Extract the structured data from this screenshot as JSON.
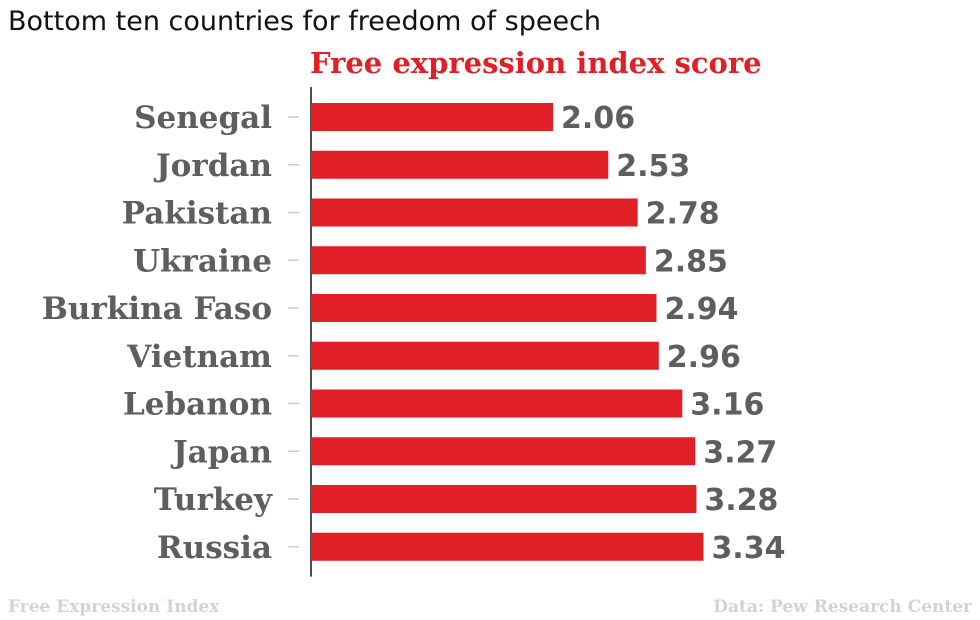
{
  "title": "Bottom ten countries for freedom of speech",
  "footer": {
    "left": "Free Expression Index",
    "right": "Data: Pew Research Center"
  },
  "colors": {
    "bar": "#e01f26",
    "label": "#5e5e5e",
    "axis": "#111111"
  },
  "chart_data": {
    "type": "bar",
    "orientation": "horizontal",
    "title": "Free expression index score",
    "categories": [
      "Senegal",
      "Jordan",
      "Pakistan",
      "Ukraine",
      "Burkina Faso",
      "Vietnam",
      "Lebanon",
      "Japan",
      "Turkey",
      "Russia"
    ],
    "values": [
      2.06,
      2.53,
      2.78,
      2.85,
      2.94,
      2.96,
      3.16,
      3.27,
      3.28,
      3.34
    ],
    "value_labels": [
      "2.06",
      "2.53",
      "2.78",
      "2.85",
      "2.94",
      "2.96",
      "3.16",
      "3.27",
      "3.28",
      "3.34"
    ],
    "xlim": [
      0,
      4.2
    ],
    "grid": false,
    "legend": "none"
  }
}
